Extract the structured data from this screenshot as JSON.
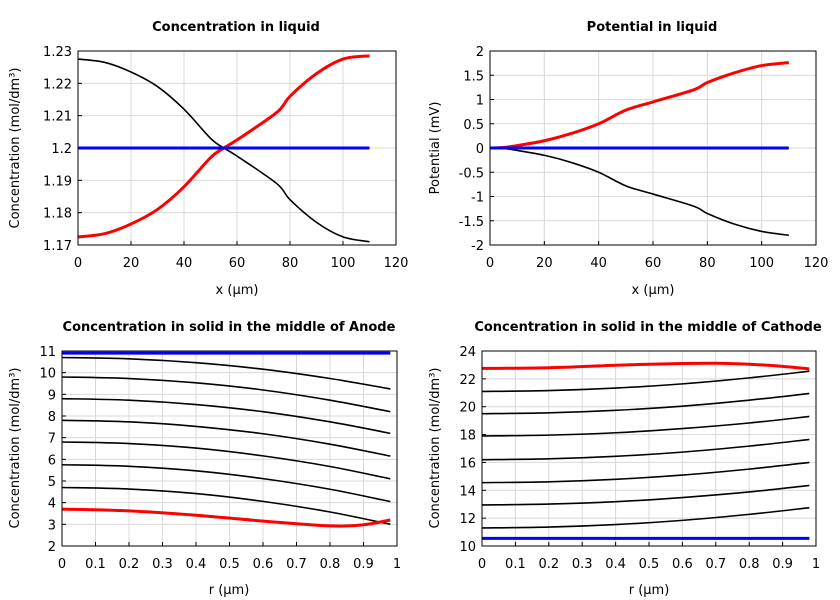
{
  "chart_data": [
    {
      "type": "line",
      "title": "Concentration in liquid",
      "xlabel": "x (µm)",
      "ylabel": "Concentration (mol/dm³)",
      "xlim": [
        0,
        120
      ],
      "ylim": [
        1.17,
        1.23
      ],
      "xticks": [
        0,
        20,
        40,
        60,
        80,
        100,
        120
      ],
      "yticks": [
        "1.17",
        "1.18",
        "1.19",
        "1.2",
        "1.21",
        "1.22",
        "1.23"
      ],
      "grid": true,
      "series": [
        {
          "color": "#000000",
          "x": [
            0,
            10,
            20,
            30,
            40,
            50,
            55,
            60,
            75,
            80,
            90,
            100,
            110
          ],
          "y": [
            1.2275,
            1.2265,
            1.2235,
            1.219,
            1.212,
            1.203,
            1.2,
            1.1975,
            1.189,
            1.184,
            1.177,
            1.1725,
            1.171
          ]
        },
        {
          "color": "#ff0000",
          "x": [
            0,
            10,
            20,
            30,
            40,
            50,
            55,
            60,
            75,
            80,
            90,
            100,
            110
          ],
          "y": [
            1.1725,
            1.1735,
            1.1765,
            1.181,
            1.188,
            1.197,
            1.2,
            1.2025,
            1.211,
            1.216,
            1.223,
            1.2275,
            1.2285
          ]
        },
        {
          "color": "#0000ff",
          "x": [
            0,
            110
          ],
          "y": [
            1.2,
            1.2
          ]
        }
      ]
    },
    {
      "type": "line",
      "title": "Potential in liquid",
      "xlabel": "x (µm)",
      "ylabel": "Potential (mV)",
      "xlim": [
        0,
        120
      ],
      "ylim": [
        -2,
        2
      ],
      "xticks": [
        0,
        20,
        40,
        60,
        80,
        100,
        120
      ],
      "yticks": [
        "-2",
        "-1.5",
        "-1",
        "-0.5",
        "0",
        "0.5",
        "1",
        "1.5",
        "2"
      ],
      "grid": true,
      "series": [
        {
          "color": "#ff0000",
          "x": [
            0,
            5,
            10,
            20,
            30,
            40,
            50,
            60,
            75,
            80,
            90,
            100,
            110
          ],
          "y": [
            0,
            0.01,
            0.05,
            0.15,
            0.3,
            0.5,
            0.78,
            0.95,
            1.2,
            1.35,
            1.55,
            1.7,
            1.76
          ]
        },
        {
          "color": "#000000",
          "x": [
            0,
            5,
            10,
            20,
            30,
            40,
            50,
            60,
            75,
            80,
            90,
            100,
            110
          ],
          "y": [
            0,
            -0.01,
            -0.05,
            -0.15,
            -0.3,
            -0.5,
            -0.78,
            -0.95,
            -1.2,
            -1.35,
            -1.57,
            -1.72,
            -1.8
          ]
        },
        {
          "color": "#0000ff",
          "x": [
            0,
            110
          ],
          "y": [
            0,
            0
          ]
        }
      ]
    },
    {
      "type": "line",
      "title": "Concentration in solid in the middle of Anode",
      "xlabel": "r (µm)",
      "ylabel": "Concentration (mol/dm³)",
      "xlim": [
        0,
        1
      ],
      "ylim": [
        2,
        11
      ],
      "xticks": [
        "0",
        "0.1",
        "0.2",
        "0.3",
        "0.4",
        "0.5",
        "0.6",
        "0.7",
        "0.8",
        "0.9",
        "1"
      ],
      "yticks": [
        "2",
        "3",
        "4",
        "5",
        "6",
        "7",
        "8",
        "9",
        "10",
        "11"
      ],
      "grid": true,
      "series": [
        {
          "color": "#000000",
          "x": [
            0,
            0.2,
            0.4,
            0.6,
            0.8,
            0.98
          ],
          "y": [
            10.7,
            10.64,
            10.46,
            10.16,
            9.73,
            9.25
          ]
        },
        {
          "color": "#000000",
          "x": [
            0,
            0.2,
            0.4,
            0.6,
            0.8,
            0.98
          ],
          "y": [
            9.8,
            9.73,
            9.53,
            9.2,
            8.73,
            8.2
          ]
        },
        {
          "color": "#000000",
          "x": [
            0,
            0.2,
            0.4,
            0.6,
            0.8,
            0.98
          ],
          "y": [
            8.8,
            8.73,
            8.53,
            8.2,
            7.73,
            7.2
          ]
        },
        {
          "color": "#000000",
          "x": [
            0,
            0.2,
            0.4,
            0.6,
            0.8,
            0.98
          ],
          "y": [
            7.8,
            7.73,
            7.52,
            7.18,
            6.7,
            6.15
          ]
        },
        {
          "color": "#000000",
          "x": [
            0,
            0.2,
            0.4,
            0.6,
            0.8,
            0.98
          ],
          "y": [
            6.8,
            6.73,
            6.52,
            6.16,
            5.67,
            5.1
          ]
        },
        {
          "color": "#000000",
          "x": [
            0,
            0.2,
            0.4,
            0.6,
            0.8,
            0.98
          ],
          "y": [
            5.75,
            5.68,
            5.47,
            5.11,
            4.62,
            4.05
          ]
        },
        {
          "color": "#000000",
          "x": [
            0,
            0.2,
            0.4,
            0.6,
            0.8,
            0.98
          ],
          "y": [
            4.7,
            4.63,
            4.42,
            4.06,
            3.57,
            3.0
          ]
        },
        {
          "color": "#ff0000",
          "x": [
            0,
            0.2,
            0.4,
            0.6,
            0.8,
            0.9,
            0.98
          ],
          "y": [
            3.7,
            3.62,
            3.42,
            3.15,
            2.93,
            2.98,
            3.2
          ]
        },
        {
          "color": "#0000ff",
          "x": [
            0,
            0.98
          ],
          "y": [
            10.9,
            10.9
          ]
        }
      ]
    },
    {
      "type": "line",
      "title": "Concentration in solid in the middle of Cathode",
      "xlabel": "r (µm)",
      "ylabel": "Concentration (mol/dm³)",
      "xlim": [
        0,
        1
      ],
      "ylim": [
        10,
        24
      ],
      "xticks": [
        "0",
        "0.1",
        "0.2",
        "0.3",
        "0.4",
        "0.5",
        "0.6",
        "0.7",
        "0.8",
        "0.9",
        "1"
      ],
      "yticks": [
        "10",
        "12",
        "14",
        "16",
        "18",
        "20",
        "22",
        "24"
      ],
      "grid": true,
      "series": [
        {
          "color": "#ff0000",
          "x": [
            0,
            0.2,
            0.4,
            0.6,
            0.7,
            0.8,
            0.9,
            0.98
          ],
          "y": [
            22.75,
            22.8,
            22.98,
            23.1,
            23.12,
            23.05,
            22.9,
            22.72
          ]
        },
        {
          "color": "#000000",
          "x": [
            0,
            0.2,
            0.4,
            0.6,
            0.8,
            0.98
          ],
          "y": [
            21.1,
            21.16,
            21.34,
            21.64,
            22.07,
            22.55
          ]
        },
        {
          "color": "#000000",
          "x": [
            0,
            0.2,
            0.4,
            0.6,
            0.8,
            0.98
          ],
          "y": [
            19.5,
            19.56,
            19.74,
            20.04,
            20.47,
            20.95
          ]
        },
        {
          "color": "#000000",
          "x": [
            0,
            0.2,
            0.4,
            0.6,
            0.8,
            0.98
          ],
          "y": [
            17.9,
            17.96,
            18.13,
            18.43,
            18.83,
            19.3
          ]
        },
        {
          "color": "#000000",
          "x": [
            0,
            0.2,
            0.4,
            0.6,
            0.8,
            0.98
          ],
          "y": [
            16.2,
            16.26,
            16.44,
            16.74,
            17.17,
            17.65
          ]
        },
        {
          "color": "#000000",
          "x": [
            0,
            0.2,
            0.4,
            0.6,
            0.8,
            0.98
          ],
          "y": [
            14.55,
            14.61,
            14.79,
            15.09,
            15.52,
            16.0
          ]
        },
        {
          "color": "#000000",
          "x": [
            0,
            0.2,
            0.4,
            0.6,
            0.8,
            0.98
          ],
          "y": [
            12.95,
            13.01,
            13.18,
            13.48,
            13.88,
            14.35
          ]
        },
        {
          "color": "#000000",
          "x": [
            0,
            0.2,
            0.4,
            0.6,
            0.8,
            0.98
          ],
          "y": [
            11.3,
            11.36,
            11.54,
            11.84,
            12.27,
            12.75
          ]
        },
        {
          "color": "#0000ff",
          "x": [
            0,
            0.98
          ],
          "y": [
            10.55,
            10.55
          ]
        }
      ]
    }
  ]
}
